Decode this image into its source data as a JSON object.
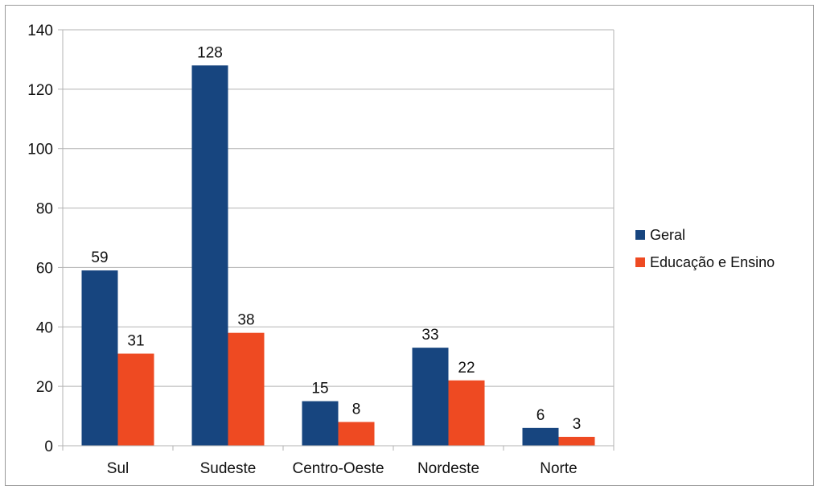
{
  "chart_data": {
    "type": "bar",
    "categories": [
      "Sul",
      "Sudeste",
      "Centro-Oeste",
      "Nordeste",
      "Norte"
    ],
    "series": [
      {
        "name": "Geral",
        "values": [
          59,
          128,
          15,
          33,
          6
        ],
        "color": "#17457f"
      },
      {
        "name": "Educação e Ensino",
        "values": [
          31,
          38,
          8,
          22,
          3
        ],
        "color": "#ee4a22"
      }
    ],
    "ylim": [
      0,
      140
    ],
    "yticks": [
      0,
      20,
      40,
      60,
      80,
      100,
      120,
      140
    ],
    "grid": true,
    "legend_position": "right",
    "data_labels": true
  }
}
